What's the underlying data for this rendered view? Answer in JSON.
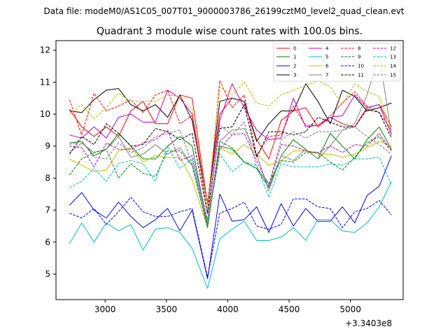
{
  "header": {
    "file_label": "Data file: modeM0/AS1C05_007T01_9000003786_26199cztM0_level2_quad_clean.evt"
  },
  "chart_data": {
    "type": "line",
    "title": "Quadrant 3 module wise count rates with 100.0s bins.",
    "xlabel": "",
    "ylabel": "",
    "x_offset_label": "+3.3403e8",
    "xlim": [
      2600,
      5430
    ],
    "ylim": [
      4.2,
      12.3
    ],
    "x_ticks": [
      3000,
      3500,
      4000,
      4500,
      5000
    ],
    "x_tick_labels": [
      "3000",
      "3500",
      "4000",
      "4500",
      "5000"
    ],
    "y_ticks": [
      5,
      6,
      7,
      8,
      9,
      10,
      11,
      12
    ],
    "y_tick_labels": [
      "5",
      "6",
      "7",
      "8",
      "9",
      "10",
      "11",
      "12"
    ],
    "grid": false,
    "legend_position": "top-right",
    "x": [
      2710,
      2810,
      2910,
      3010,
      3110,
      3210,
      3310,
      3410,
      3510,
      3610,
      3710,
      3835,
      3935,
      4035,
      4135,
      4235,
      4335,
      4435,
      4535,
      4635,
      4735,
      4835,
      4935,
      5035,
      5135,
      5235,
      5335
    ],
    "series": [
      {
        "name": "0",
        "color": "#ff0000",
        "dash": "solid",
        "values": [
          10.15,
          9.6,
          9.3,
          9.6,
          9.3,
          10.1,
          10.4,
          9.7,
          9.7,
          10.6,
          10.5,
          7.2,
          10.0,
          10.5,
          10.4,
          9.2,
          8.6,
          9.8,
          10.1,
          10.2,
          9.6,
          9.9,
          9.7,
          9.6,
          10.2,
          10.3,
          9.6
        ]
      },
      {
        "name": "1",
        "color": "#008000",
        "dash": "solid",
        "values": [
          9.1,
          9.15,
          8.7,
          8.9,
          9.4,
          9.0,
          8.6,
          8.6,
          9.0,
          9.3,
          9.0,
          6.5,
          9.0,
          8.9,
          8.5,
          8.3,
          7.7,
          8.7,
          9.2,
          8.9,
          8.6,
          9.4,
          9.0,
          8.6,
          9.2,
          9.6,
          8.9
        ]
      },
      {
        "name": "2",
        "color": "#0000ff",
        "dash": "solid",
        "values": [
          7.15,
          7.55,
          7.0,
          6.75,
          7.25,
          6.8,
          6.45,
          6.7,
          7.05,
          6.35,
          7.0,
          4.85,
          7.5,
          6.65,
          6.7,
          7.1,
          6.3,
          7.2,
          6.5,
          7.05,
          6.65,
          6.65,
          7.1,
          6.6,
          7.45,
          7.75,
          8.7
        ]
      },
      {
        "name": "3",
        "color": "#000000",
        "dash": "solid",
        "values": [
          10.1,
          10.05,
          10.45,
          10.75,
          10.8,
          10.3,
          10.1,
          10.3,
          9.9,
          10.6,
          9.8,
          7.2,
          10.4,
          10.5,
          10.4,
          9.15,
          9.7,
          10.1,
          10.1,
          10.95,
          10.4,
          9.7,
          10.75,
          10.55,
          10.1,
          10.2,
          10.35
        ]
      },
      {
        "name": "4",
        "color": "#bf00bf",
        "dash": "solid",
        "values": [
          9.35,
          9.25,
          9.6,
          9.25,
          9.9,
          10.0,
          9.75,
          9.75,
          10.75,
          10.5,
          10.0,
          7.2,
          9.8,
          10.95,
          10.2,
          9.5,
          9.2,
          9.25,
          10.5,
          9.6,
          9.65,
          9.9,
          9.95,
          10.6,
          10.2,
          10.3,
          9.35
        ]
      },
      {
        "name": "5",
        "color": "#00bfbf",
        "dash": "solid",
        "values": [
          5.95,
          6.6,
          6.0,
          6.6,
          6.35,
          6.55,
          5.75,
          6.4,
          6.45,
          6.3,
          5.8,
          4.55,
          6.1,
          6.4,
          6.65,
          6.05,
          6.05,
          6.15,
          6.45,
          6.05,
          6.7,
          6.7,
          6.35,
          6.3,
          6.6,
          7.1,
          7.9
        ]
      },
      {
        "name": "6",
        "color": "#bfbf00",
        "dash": "solid",
        "values": [
          8.6,
          8.4,
          8.2,
          8.25,
          8.85,
          8.95,
          8.5,
          8.7,
          8.65,
          8.65,
          7.95,
          6.45,
          8.95,
          8.75,
          9.05,
          8.75,
          8.4,
          8.55,
          8.85,
          8.85,
          8.75,
          8.75,
          8.65,
          8.75,
          8.95,
          9.15,
          9.0
        ]
      },
      {
        "name": "7",
        "color": "#808080",
        "dash": "solid",
        "values": [
          8.8,
          9.1,
          8.8,
          8.9,
          9.3,
          8.65,
          8.75,
          9.05,
          8.75,
          8.95,
          8.4,
          6.5,
          9.15,
          9.5,
          9.55,
          8.75,
          7.6,
          8.7,
          8.55,
          8.9,
          8.6,
          9.0,
          9.5,
          9.7,
          10.6,
          11.85,
          9.35
        ]
      },
      {
        "name": "8",
        "color": "#ff0000",
        "dash": "dashed",
        "values": [
          10.45,
          9.35,
          10.65,
          10.1,
          10.25,
          10.45,
          10.05,
          10.6,
          10.75,
          9.7,
          9.95,
          6.9,
          11.05,
          10.2,
          10.6,
          8.7,
          9.3,
          9.35,
          10.25,
          9.65,
          9.65,
          9.95,
          10.35,
          10.7,
          10.25,
          10.05,
          9.5
        ]
      },
      {
        "name": "9",
        "color": "#008000",
        "dash": "dashed",
        "values": [
          8.1,
          8.6,
          8.8,
          8.9,
          8.0,
          8.45,
          8.15,
          8.05,
          8.85,
          8.85,
          8.4,
          6.45,
          9.15,
          8.95,
          8.5,
          8.3,
          7.85,
          8.55,
          8.5,
          8.8,
          8.8,
          8.5,
          8.25,
          8.65,
          9.1,
          9.3,
          8.85
        ]
      },
      {
        "name": "10",
        "color": "#0000ff",
        "dash": "dashed",
        "values": [
          6.9,
          6.75,
          7.05,
          6.55,
          6.95,
          7.4,
          6.95,
          6.8,
          6.8,
          6.95,
          7.05,
          4.9,
          6.9,
          7.05,
          7.25,
          6.5,
          6.4,
          6.55,
          7.35,
          7.35,
          7.1,
          7.05,
          6.45,
          6.95,
          7.05,
          7.3,
          6.85
        ]
      },
      {
        "name": "11",
        "color": "#000000",
        "dash": "dashed",
        "values": [
          8.75,
          9.3,
          9.05,
          9.7,
          9.4,
          9.0,
          9.05,
          9.55,
          9.45,
          9.2,
          9.4,
          6.9,
          9.55,
          9.6,
          10.3,
          8.65,
          9.45,
          9.45,
          9.35,
          9.45,
          9.9,
          9.75,
          9.6,
          9.6,
          10.15,
          10.05,
          9.25
        ]
      },
      {
        "name": "12",
        "color": "#bf00bf",
        "dash": "dashed",
        "values": [
          9.0,
          8.95,
          8.35,
          9.1,
          8.9,
          8.9,
          9.1,
          9.2,
          9.5,
          8.55,
          8.7,
          6.7,
          8.9,
          9.35,
          9.4,
          8.55,
          7.75,
          9.05,
          9.0,
          8.85,
          8.8,
          9.0,
          8.8,
          9.05,
          9.0,
          9.4,
          8.85
        ]
      },
      {
        "name": "13",
        "color": "#00bfbf",
        "dash": "dashed",
        "values": [
          7.7,
          7.9,
          8.3,
          7.9,
          8.45,
          8.55,
          8.45,
          7.9,
          9.0,
          8.3,
          8.6,
          6.6,
          8.75,
          8.2,
          8.5,
          8.4,
          7.4,
          8.45,
          8.35,
          8.35,
          8.35,
          8.45,
          8.4,
          8.6,
          8.6,
          8.65,
          7.8
        ]
      },
      {
        "name": "14",
        "color": "#bfbf00",
        "dash": "dashed",
        "values": [
          10.0,
          10.3,
          9.85,
          10.2,
          10.65,
          10.4,
          10.4,
          10.4,
          10.6,
          10.55,
          10.15,
          7.15,
          10.85,
          10.6,
          11.0,
          10.35,
          10.25,
          10.6,
          10.75,
          10.9,
          11.05,
          10.85,
          10.3,
          10.95,
          10.7,
          10.55,
          9.5
        ]
      },
      {
        "name": "15",
        "color": "#808080",
        "dash": "dashed",
        "values": [
          9.05,
          9.15,
          8.65,
          8.6,
          9.1,
          8.8,
          8.95,
          9.3,
          9.4,
          9.5,
          8.45,
          6.65,
          9.65,
          9.35,
          9.75,
          8.35,
          7.8,
          9.2,
          9.45,
          9.25,
          9.45,
          9.45,
          9.5,
          9.6,
          9.3,
          9.05,
          8.75
        ]
      }
    ]
  }
}
